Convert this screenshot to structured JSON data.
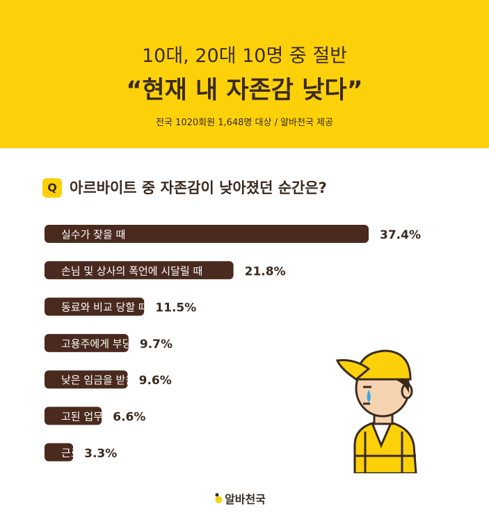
{
  "header": {
    "title_line1": "10대, 20대 10명 중 절반",
    "title_line2": "“현재 내 자존감 낮다”",
    "subtitle": "전국 1020회원 1,648명 대상 / 알바천국 제공"
  },
  "question": {
    "badge": "Q",
    "text": "아르바이트 중 자존감이 낮아졌던 순간은?"
  },
  "chart_data": {
    "type": "bar",
    "orientation": "horizontal",
    "categories": [
      "실수가 잦을 때",
      "손님 및 상사의 폭언에 시달릴 때",
      "동료와 비교 당할 때",
      "고용주에게 부당 대우를 받을 때",
      "낮은 임금을 받을 때",
      "고된 업무 강도에 시달릴 때",
      "근로 시간이 과다할 때"
    ],
    "values": [
      37.4,
      21.8,
      11.5,
      9.7,
      9.6,
      6.6,
      3.3
    ],
    "value_labels": [
      "37.4%",
      "21.8%",
      "11.5%",
      "9.7%",
      "9.6%",
      "6.6%",
      "3.3%"
    ],
    "bar_color": "#4a2a1e",
    "label_color": "#ffffff"
  },
  "logo": {
    "text": "알바천국"
  },
  "colors": {
    "brand_yellow": "#fcd10a",
    "dark_brown": "#3a2a1e"
  }
}
